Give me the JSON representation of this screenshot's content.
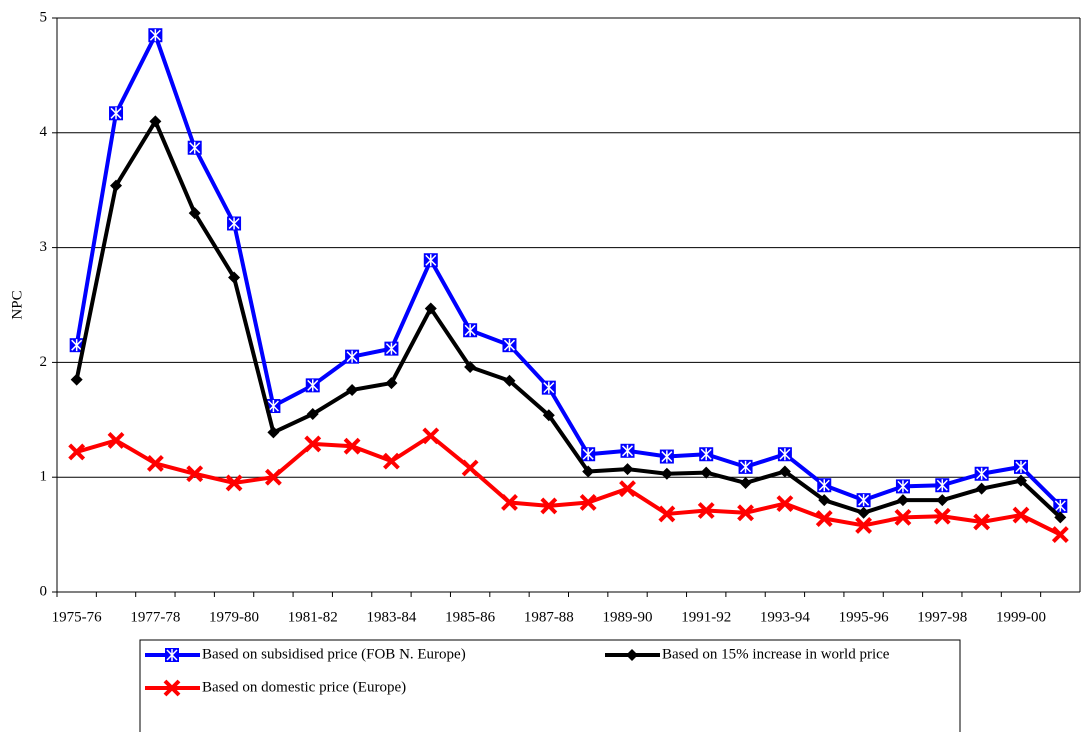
{
  "chart_data": {
    "type": "line",
    "y_label": "NPC",
    "categories": [
      "1975-76",
      null,
      "1977-78",
      null,
      "1979-80",
      null,
      "1981-82",
      null,
      "1983-84",
      null,
      "1985-86",
      null,
      "1987-88",
      null,
      "1989-90",
      null,
      "1991-92",
      null,
      "1993-94",
      null,
      "1995-96",
      null,
      "1997-98",
      null,
      "1999-00",
      null
    ],
    "series": [
      {
        "name": "Based on subsidised price (FOB N. Europe)",
        "color": "#0000ff",
        "marker": "square-x",
        "values": [
          2.15,
          4.17,
          4.85,
          3.87,
          3.21,
          1.62,
          1.8,
          2.05,
          2.12,
          2.89,
          2.28,
          2.15,
          1.78,
          1.2,
          1.23,
          1.18,
          1.2,
          1.09,
          1.2,
          0.93,
          0.8,
          0.92,
          0.93,
          1.03,
          1.09,
          0.75
        ]
      },
      {
        "name": "Based on 15% increase in world price",
        "color": "#000000",
        "marker": "diamond",
        "values": [
          1.85,
          3.54,
          4.1,
          3.3,
          2.74,
          1.39,
          1.55,
          1.76,
          1.82,
          2.47,
          1.96,
          1.84,
          1.54,
          1.05,
          1.07,
          1.03,
          1.04,
          0.95,
          1.05,
          0.8,
          0.69,
          0.8,
          0.8,
          0.9,
          0.97,
          0.65
        ]
      },
      {
        "name": "Based on domestic price (Europe)",
        "color": "#ff0000",
        "marker": "x",
        "values": [
          1.22,
          1.32,
          1.12,
          1.03,
          0.95,
          1.0,
          1.29,
          1.27,
          1.14,
          1.36,
          1.08,
          0.78,
          0.75,
          0.78,
          0.9,
          0.68,
          0.71,
          0.69,
          0.77,
          0.64,
          0.58,
          0.65,
          0.66,
          0.61,
          0.67,
          0.5
        ]
      }
    ],
    "ylim": [
      0,
      5
    ],
    "yticks": [
      0,
      1,
      2,
      3,
      4,
      5
    ],
    "grid": true
  }
}
